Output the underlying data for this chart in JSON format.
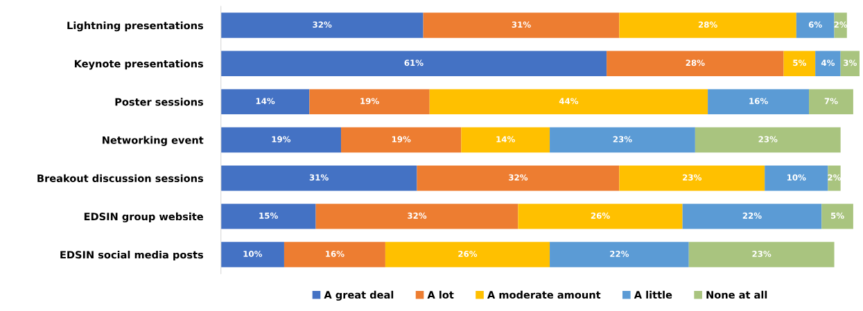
{
  "chart_data": {
    "type": "bar",
    "orientation": "horizontal",
    "stacked": true,
    "categories": [
      "Lightning presentations",
      "Keynote presentations",
      "Poster sessions",
      "Networking event",
      "Breakout discussion sessions",
      "EDSIN group website",
      "EDSIN social media posts"
    ],
    "series": [
      {
        "name": "A great deal",
        "color": "#4472c4",
        "values": [
          32,
          61,
          14,
          19,
          31,
          15,
          10
        ],
        "value_labels": [
          "32%",
          "61%",
          "14%",
          "19%",
          "31%",
          "15%",
          "10%"
        ]
      },
      {
        "name": "A lot",
        "color": "#ed7d31",
        "values": [
          31,
          28,
          19,
          19,
          32,
          32,
          16
        ],
        "value_labels": [
          "31%",
          "28%",
          "19%",
          "19%",
          "32%",
          "32%",
          "16%"
        ]
      },
      {
        "name": "A moderate amount",
        "color": "#ffc000",
        "values": [
          28,
          5,
          44,
          14,
          23,
          26,
          26
        ],
        "value_labels": [
          "28%",
          "5%",
          "44%",
          "14%",
          "23%",
          "26%",
          "26%"
        ]
      },
      {
        "name": "A little",
        "color": "#5b9bd5",
        "values": [
          6,
          4,
          16,
          23,
          10,
          22,
          22
        ],
        "value_labels": [
          "6%",
          "4%",
          "16%",
          "23%",
          "10%",
          "22%",
          "22%"
        ]
      },
      {
        "name": "None at all",
        "color": "#a9c47f",
        "values": [
          2,
          3,
          7,
          23,
          2,
          5,
          23
        ],
        "value_labels": [
          "2%",
          "3%",
          "7%",
          "23%",
          "2%",
          "5%",
          "23%"
        ]
      }
    ],
    "xlim": [
      0,
      101
    ],
    "tick_labels": "y",
    "legend": "bottom",
    "grid": false
  }
}
